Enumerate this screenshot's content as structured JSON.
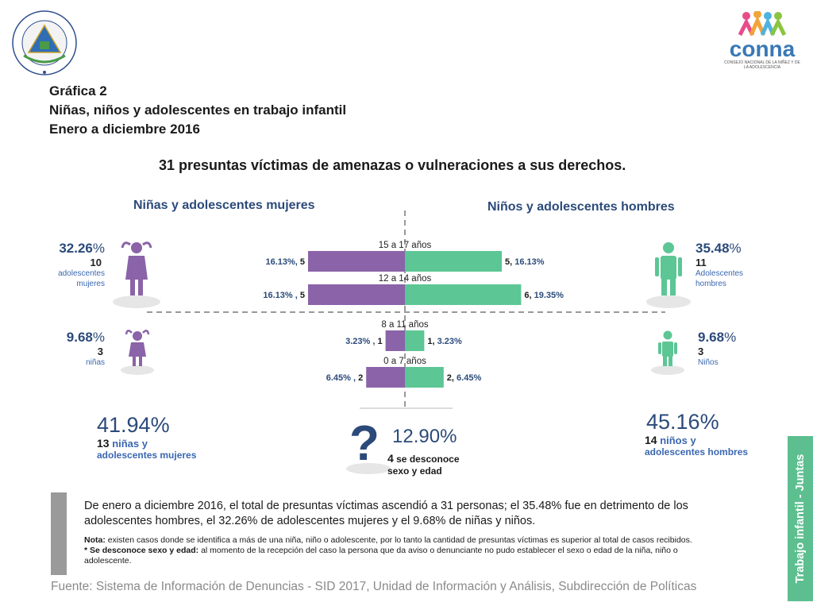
{
  "header": {
    "chart_label": "Gráfica 2",
    "chart_subject": "Niñas, niños y adolescentes en trabajo infantil",
    "period": "Enero a diciembre 2016",
    "seal_text": "REPÚBLICA DE EL SALVADOR EN LA AMÉRICA CENTRAL",
    "logo_text": "conna",
    "logo_subtext": "CONSEJO NACIONAL DE LA NIÑEZ Y DE LA ADOLESCENCIA"
  },
  "headline": "31 presuntas víctimas de amenazas o vulneraciones a sus derechos.",
  "sections": {
    "female_title": "Niñas y adolescentes mujeres",
    "male_title": "Niños y adolescentes hombres"
  },
  "female_adolescents": {
    "pct_num": "32.26",
    "pct_sign": "%",
    "count": "10",
    "label1": "adolescentes",
    "label2": "mujeres"
  },
  "female_girls": {
    "pct_num": "9.68",
    "pct_sign": "%",
    "count": "3",
    "label1": "niñas"
  },
  "male_adolescents": {
    "pct_num": "35.48",
    "pct_sign": "%",
    "count": "11",
    "label1": "Adolescentes",
    "label2": "hombres"
  },
  "male_boys": {
    "pct_num": "9.68",
    "pct_sign": "%",
    "count": "3",
    "label1": "Niños"
  },
  "totals": {
    "female": {
      "pct_num": "41.94",
      "pct_sign": "%",
      "count": "13",
      "label1": " niñas y",
      "label2": "adolescentes mujeres"
    },
    "unknown": {
      "pct_num": "12.90",
      "pct_sign": "%",
      "count": "4",
      "label1": " se desconoce",
      "label2": "sexo y edad",
      "symbol": "?"
    },
    "male": {
      "pct_num": "45.16",
      "pct_sign": "%",
      "count": "14",
      "label1": " niños y",
      "label2": "adolescentes hombres"
    }
  },
  "chart_data": {
    "type": "bar",
    "orientation": "horizontal-diverging",
    "categories": [
      "15 a 17 años",
      "12 a 14 años",
      "8 a 11 años",
      "0 a 7 años"
    ],
    "series": [
      {
        "name": "Niñas y adolescentes mujeres",
        "color": "#8a63a8",
        "values": [
          5,
          5,
          1,
          2
        ],
        "percents": [
          "16.13%",
          "16.13%",
          "3.23%",
          "6.45%"
        ]
      },
      {
        "name": "Niños y adolescentes hombres",
        "color": "#5cc694",
        "values": [
          5,
          6,
          1,
          2
        ],
        "percents": [
          "16.13%",
          "19.35%",
          "3.23%",
          "6.45%"
        ]
      }
    ],
    "bar_labels_left": [
      {
        "pct": "16.13%,",
        "n": "5"
      },
      {
        "pct": "16.13% ,",
        "n": "5"
      },
      {
        "pct": "3.23% ,",
        "n": "1"
      },
      {
        "pct": "6.45% ,",
        "n": "2"
      }
    ],
    "bar_labels_right": [
      {
        "n": "5,",
        "pct": "16.13%"
      },
      {
        "n": "6,",
        "pct": "19.35%"
      },
      {
        "n": "1,",
        "pct": "3.23%"
      },
      {
        "n": "2,",
        "pct": "6.45%"
      }
    ]
  },
  "summary": "De enero a diciembre 2016, el total de presuntas víctimas ascendió a 31 personas; el 35.48% fue en detrimento de los adolescentes hombres, el  32.26% de adolescentes mujeres y el 9.68% de niñas y niños.",
  "note": {
    "label": "Nota:",
    "text": " existen casos donde se identifica a más de una niña, niño o adolescente, por lo tanto la cantidad de presuntas víctimas es superior al total de casos recibidos.",
    "unknown_label": "* Se desconoce sexo y edad:",
    "unknown_text": " al momento de la recepción del caso la persona que da aviso o denunciante no pudo establecer el sexo o edad de la niña, niño o adolescente."
  },
  "source": "Fuente: Sistema de Información de Denuncias - SID 2017, Unidad de Información y Análisis, Subdirección de Políticas",
  "side_tab": "Trabajo infantil - Juntas",
  "colors": {
    "female": "#8a63a8",
    "male": "#5cc694",
    "navy": "#2b4a7a",
    "tab": "#5dbf8f"
  }
}
